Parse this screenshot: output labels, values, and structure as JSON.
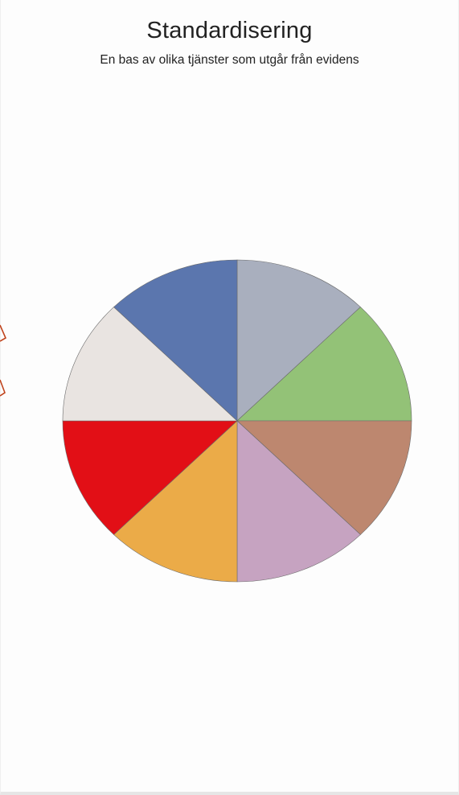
{
  "header": {
    "title": "Standardisering",
    "subtitle": "En bas av olika tjänster som utgår från evidens"
  },
  "chart_data": {
    "type": "pie",
    "title": "Standardisering",
    "subtitle": "En bas av olika tjänster som utgår från evidens",
    "categories": [
      "",
      "",
      "",
      "",
      "",
      "",
      "",
      ""
    ],
    "values": [
      12.5,
      12.5,
      12.5,
      12.5,
      12.5,
      12.5,
      12.5,
      12.5
    ],
    "colors": [
      "#a9afbe",
      "#93c277",
      "#bd876f",
      "#c6a3c1",
      "#ebab48",
      "#e20f16",
      "#e9e4e1",
      "#5b76ae"
    ],
    "start": "12 o'clock",
    "direction": "clockwise",
    "legend": "none",
    "grid": false
  }
}
